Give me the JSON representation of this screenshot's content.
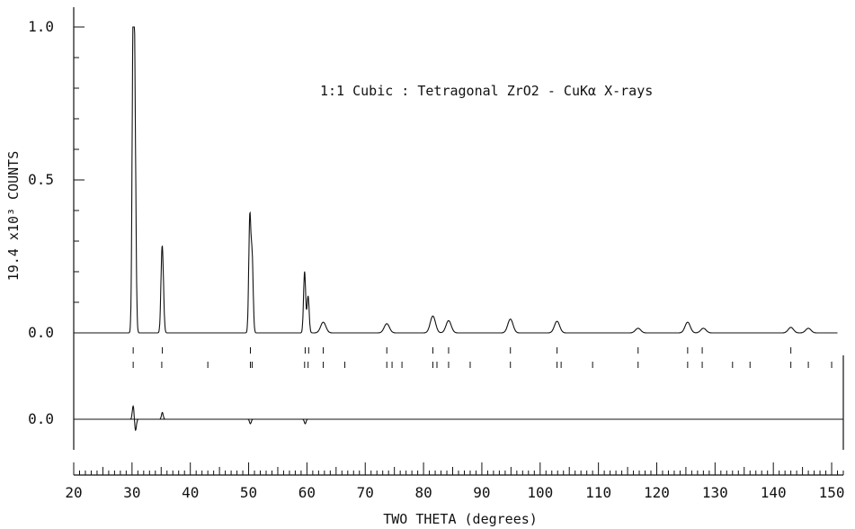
{
  "chart_data": {
    "type": "line",
    "title": "1:1 Cubic : Tetragonal ZrO2 - CuKα X-rays",
    "xlabel": "TWO THETA (degrees)",
    "ylabel": "19.4  x10³ COUNTS",
    "xlim": [
      20,
      152
    ],
    "ylim": [
      0.0,
      1.05
    ],
    "x_ticks": [
      20,
      30,
      40,
      50,
      60,
      70,
      80,
      90,
      100,
      110,
      120,
      130,
      140,
      150
    ],
    "x_tick_labels": [
      "20",
      "30",
      "40",
      "50",
      "60",
      "70",
      "80",
      "90",
      "100",
      "110",
      "120",
      "130",
      "140",
      "150"
    ],
    "y_ticks": [
      0.0,
      0.5,
      1.0
    ],
    "y_tick_labels": [
      "0.0",
      "0.5",
      "1.0"
    ],
    "difference_y_label": "0.0",
    "baseline": 0.0,
    "peaks": [
      {
        "x": 30.2,
        "y": 1.0
      },
      {
        "x": 30.5,
        "y": 0.62
      },
      {
        "x": 35.1,
        "y": 0.19
      },
      {
        "x": 35.3,
        "y": 0.14
      },
      {
        "x": 50.2,
        "y": 0.37
      },
      {
        "x": 50.6,
        "y": 0.24
      },
      {
        "x": 59.6,
        "y": 0.2
      },
      {
        "x": 60.2,
        "y": 0.12
      },
      {
        "x": 62.8,
        "y": 0.035
      },
      {
        "x": 73.7,
        "y": 0.03
      },
      {
        "x": 81.6,
        "y": 0.055
      },
      {
        "x": 84.3,
        "y": 0.04
      },
      {
        "x": 94.9,
        "y": 0.045
      },
      {
        "x": 102.9,
        "y": 0.038
      },
      {
        "x": 116.8,
        "y": 0.015
      },
      {
        "x": 125.3,
        "y": 0.035
      },
      {
        "x": 128.0,
        "y": 0.015
      },
      {
        "x": 143.0,
        "y": 0.018
      },
      {
        "x": 146.0,
        "y": 0.015
      }
    ],
    "reflections_row1": [
      30.2,
      35.2,
      50.3,
      59.7,
      60.3,
      62.8,
      73.7,
      81.6,
      84.3,
      94.9,
      102.9,
      116.8,
      125.3,
      127.8,
      143.0
    ],
    "reflections_row2": [
      30.2,
      35.1,
      43.0,
      50.3,
      50.6,
      59.6,
      60.2,
      62.8,
      66.5,
      73.7,
      74.6,
      76.3,
      81.6,
      82.3,
      84.3,
      88.0,
      94.9,
      102.9,
      103.6,
      109.0,
      116.8,
      125.3,
      127.8,
      133.0,
      136.0,
      143.0,
      146.0,
      150.0
    ],
    "difference": [
      {
        "x": 30.2,
        "y": 0.06
      },
      {
        "x": 30.6,
        "y": -0.05
      },
      {
        "x": 35.2,
        "y": 0.03
      },
      {
        "x": 50.3,
        "y": -0.02
      },
      {
        "x": 59.7,
        "y": -0.02
      }
    ],
    "grid": false,
    "legend": "none"
  }
}
